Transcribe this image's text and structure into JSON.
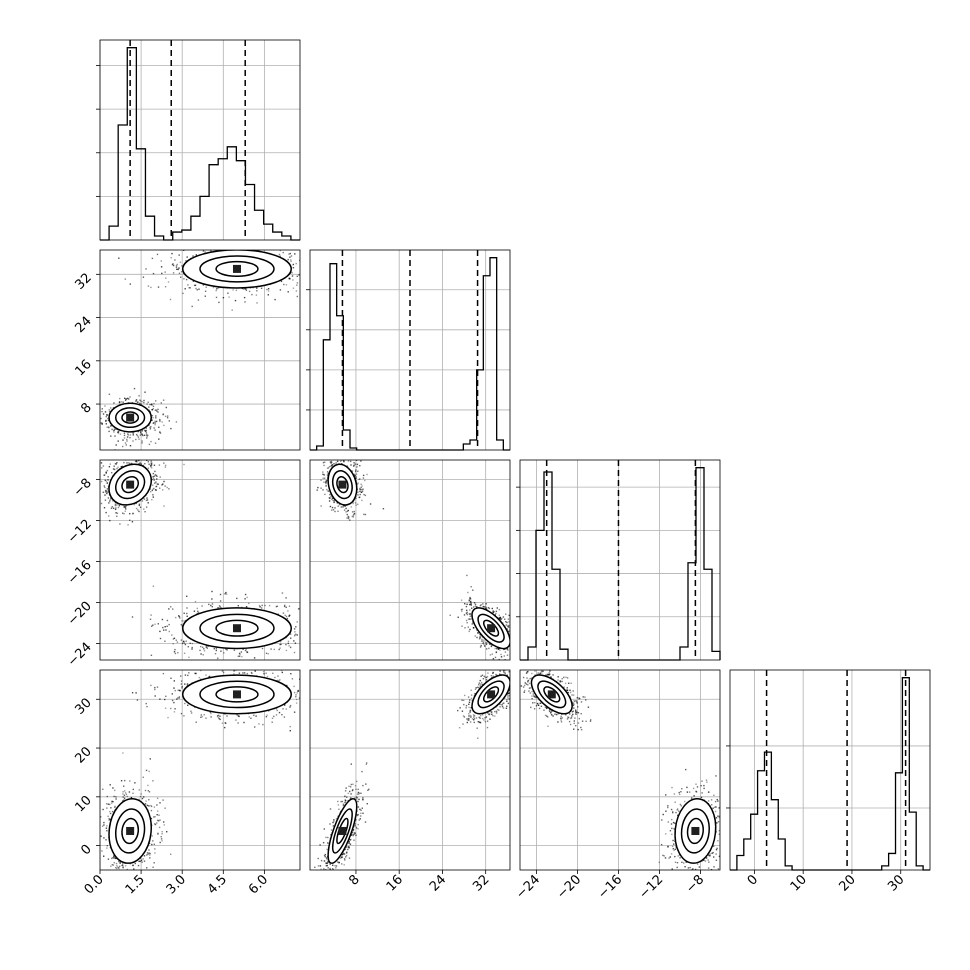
{
  "chart_data": {
    "type": "corner",
    "parameters": [
      {
        "ticks": [
          0.0,
          1.5,
          3.0,
          4.5,
          6.0
        ],
        "tick_labels": [
          "0.0",
          "1.5",
          "3.0",
          "4.5",
          "6.0"
        ],
        "range": [
          0.0,
          7.3
        ]
      },
      {
        "ticks": [
          8,
          16,
          24,
          32
        ],
        "tick_labels": [
          "8",
          "16",
          "24",
          "32"
        ],
        "range": [
          -0.5,
          36.5
        ]
      },
      {
        "ticks": [
          -24,
          -20,
          -16,
          -12,
          -8
        ],
        "tick_labels": [
          "−24",
          "−20",
          "−16",
          "−12",
          "−8"
        ],
        "range": [
          -25.6,
          -6.1
        ]
      },
      {
        "ticks": [
          0,
          10,
          20,
          30
        ],
        "tick_labels": [
          "0",
          "10",
          "20",
          "30"
        ],
        "range": [
          -5.0,
          36.0
        ]
      }
    ],
    "quantiles": [
      [
        1.1,
        2.6,
        5.3
      ],
      [
        5.5,
        18.0,
        30.5
      ],
      [
        -23.0,
        -16.0,
        -8.5
      ],
      [
        2.5,
        19.0,
        31.0
      ]
    ],
    "histograms": [
      {
        "edges_range": [
          0.0,
          7.3
        ],
        "counts": [
          0,
          0.07,
          0.58,
          0.97,
          0.46,
          0.12,
          0.02,
          0.0,
          0.04,
          0.05,
          0.12,
          0.22,
          0.38,
          0.41,
          0.47,
          0.4,
          0.28,
          0.15,
          0.08,
          0.04,
          0.02,
          0.0
        ],
        "yticks": [
          0.0,
          0.22,
          0.44,
          0.66,
          0.88
        ]
      },
      {
        "edges_range": [
          -0.5,
          36.5
        ],
        "counts": [
          0,
          0.02,
          0.55,
          0.93,
          0.67,
          0.1,
          0.01,
          0.0,
          0.0,
          0.0,
          0.0,
          0.0,
          0.0,
          0.0,
          0.0,
          0.0,
          0.0,
          0.0,
          0.0,
          0.0,
          0.0,
          0.0,
          0.0,
          0.03,
          0.05,
          0.4,
          0.87,
          0.96,
          0.05,
          0.0
        ],
        "yticks": [
          0.0,
          0.2,
          0.4,
          0.6,
          0.8,
          1.0
        ]
      },
      {
        "edges_range": [
          -25.6,
          -6.1
        ],
        "counts": [
          0,
          0.06,
          0.6,
          0.87,
          0.42,
          0.05,
          0.0,
          0.0,
          0.0,
          0.0,
          0.0,
          0.0,
          0.0,
          0.0,
          0.0,
          0.0,
          0.0,
          0.0,
          0.0,
          0.0,
          0.06,
          0.45,
          0.89,
          0.42,
          0.04
        ],
        "yticks": [
          0.0,
          0.2,
          0.4,
          0.6,
          0.8,
          1.0
        ]
      },
      {
        "edges_range": [
          -5.0,
          36.0
        ],
        "counts": [
          0,
          0.07,
          0.15,
          0.27,
          0.48,
          0.57,
          0.34,
          0.15,
          0.02,
          0.0,
          0.0,
          0.0,
          0.0,
          0.0,
          0.0,
          0.0,
          0.0,
          0.0,
          0.0,
          0.0,
          0.0,
          0.0,
          0.02,
          0.08,
          0.47,
          0.93,
          0.28,
          0.02,
          0.0
        ],
        "yticks": [
          0.0,
          0.3,
          0.6
        ]
      }
    ],
    "clusters": [
      {
        "means": [
          1.1,
          5.5,
          -8.5,
          3.0
        ],
        "sd": [
          0.35,
          1.2,
          0.9,
          3.0
        ]
      },
      {
        "means": [
          5.0,
          33.0,
          -22.5,
          31.0
        ],
        "sd": [
          0.9,
          1.6,
          0.9,
          1.8
        ]
      }
    ],
    "pair_correlations": {
      "1-2": {
        "0": 0.0,
        "1": 0.0
      },
      "0-2": {
        "0": 0.2,
        "1": 0.0
      },
      "1-2b": {
        "0": -0.2,
        "1": -0.65
      },
      "0-3": {
        "0": 0.1,
        "1": 0.0
      },
      "1-3": {
        "0": 0.75,
        "1": 0.6
      },
      "2-3": {
        "0": 0.1,
        "1": -0.6
      }
    },
    "grid": true,
    "colors": {
      "lines": "#000000",
      "grid": "#b0b0b0",
      "contour_fill_light": "#d9d9d9",
      "contour_fill_mid": "#8a8a8a",
      "contour_fill_dark": "#202020"
    }
  }
}
